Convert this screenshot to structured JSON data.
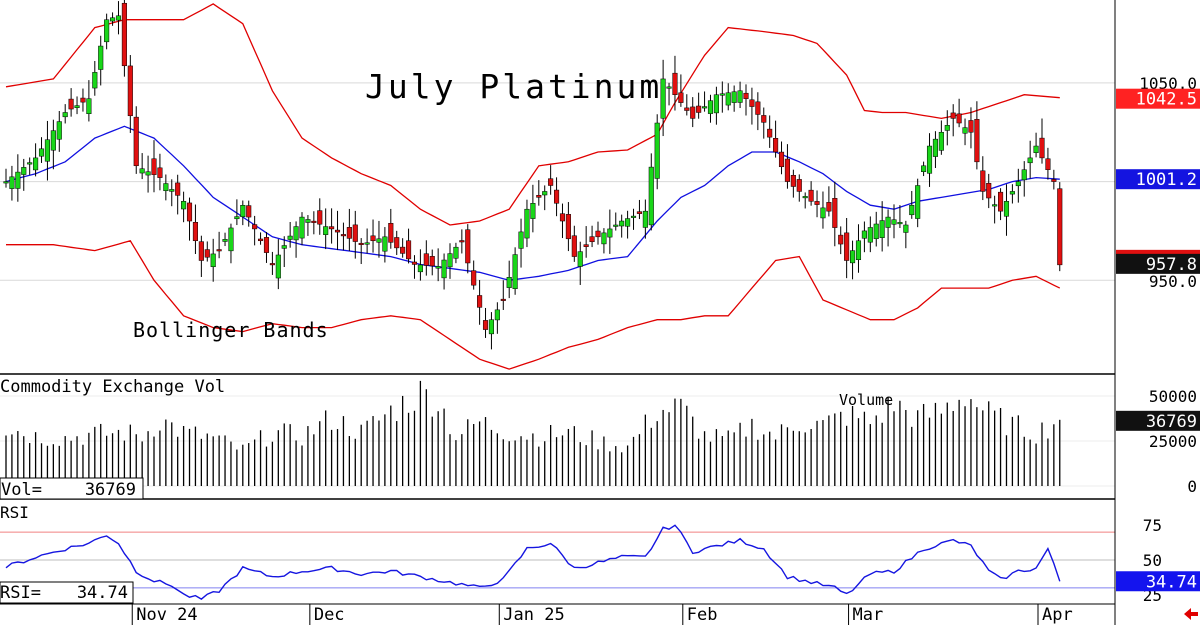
{
  "chart_data": {
    "type": "candlestick",
    "title": "July Platinum",
    "indicator_label": "Bollinger Bands",
    "x_labels": [
      "Nov 24",
      "Dec",
      "Jan 25",
      "Feb",
      "Mar",
      "Apr"
    ],
    "x_label_index": [
      22,
      52,
      84,
      115,
      143,
      175
    ],
    "n_bars": 179,
    "price_panel": {
      "y_ticks": [
        950.0,
        1000.0,
        1050.0
      ],
      "y_tick_labels": [
        "950.0",
        "1050.0"
      ],
      "ylim": [
        903,
        1092
      ],
      "last_price": 957.8,
      "last_price_label": "957.8",
      "upper_band_last": 1042.5,
      "upper_band_label": "1042.5",
      "mid_band_last": 1001.2,
      "mid_band_label": "1001.2",
      "close_anchors": [
        [
          0,
          1000
        ],
        [
          5,
          1012
        ],
        [
          10,
          1035
        ],
        [
          14,
          1042
        ],
        [
          17,
          1082
        ],
        [
          19,
          1084
        ],
        [
          22,
          1008
        ],
        [
          26,
          1002
        ],
        [
          30,
          990
        ],
        [
          33,
          960
        ],
        [
          36,
          965
        ],
        [
          40,
          988
        ],
        [
          45,
          958
        ],
        [
          50,
          982
        ],
        [
          55,
          976
        ],
        [
          60,
          968
        ],
        [
          64,
          972
        ],
        [
          69,
          958
        ],
        [
          73,
          957
        ],
        [
          77,
          970
        ],
        [
          81,
          925
        ],
        [
          84,
          940
        ],
        [
          88,
          986
        ],
        [
          92,
          998
        ],
        [
          96,
          962
        ],
        [
          100,
          972
        ],
        [
          104,
          980
        ],
        [
          108,
          985
        ],
        [
          111,
          1052
        ],
        [
          116,
          1032
        ],
        [
          120,
          1044
        ],
        [
          124,
          1046
        ],
        [
          128,
          1030
        ],
        [
          132,
          1000
        ],
        [
          136,
          990
        ],
        [
          139,
          985
        ],
        [
          142,
          960
        ],
        [
          145,
          975
        ],
        [
          149,
          982
        ],
        [
          152,
          978
        ],
        [
          156,
          1018
        ],
        [
          160,
          1032
        ],
        [
          163,
          1025
        ],
        [
          165,
          995
        ],
        [
          168,
          985
        ],
        [
          171,
          1000
        ],
        [
          174,
          1018
        ],
        [
          177,
          1000
        ],
        [
          178,
          957.8
        ]
      ],
      "upper_band_anchors": [
        [
          0,
          1048
        ],
        [
          8,
          1052
        ],
        [
          15,
          1078
        ],
        [
          20,
          1082
        ],
        [
          30,
          1082
        ],
        [
          35,
          1090
        ],
        [
          40,
          1080
        ],
        [
          45,
          1046
        ],
        [
          50,
          1022
        ],
        [
          55,
          1012
        ],
        [
          60,
          1004
        ],
        [
          65,
          998
        ],
        [
          70,
          986
        ],
        [
          75,
          978
        ],
        [
          80,
          980
        ],
        [
          85,
          986
        ],
        [
          90,
          1008
        ],
        [
          95,
          1010
        ],
        [
          100,
          1015
        ],
        [
          105,
          1016
        ],
        [
          110,
          1024
        ],
        [
          113,
          1040
        ],
        [
          118,
          1064
        ],
        [
          122,
          1078
        ],
        [
          128,
          1076
        ],
        [
          133,
          1074
        ],
        [
          137,
          1070
        ],
        [
          142,
          1054
        ],
        [
          145,
          1036
        ],
        [
          148,
          1035
        ],
        [
          152,
          1035
        ],
        [
          158,
          1032
        ],
        [
          163,
          1035
        ],
        [
          168,
          1040
        ],
        [
          172,
          1044
        ],
        [
          178,
          1042.5
        ]
      ],
      "mid_band_anchors": [
        [
          0,
          1000
        ],
        [
          5,
          1004
        ],
        [
          10,
          1010
        ],
        [
          15,
          1022
        ],
        [
          20,
          1028
        ],
        [
          25,
          1022
        ],
        [
          30,
          1008
        ],
        [
          35,
          992
        ],
        [
          40,
          982
        ],
        [
          45,
          972
        ],
        [
          50,
          968
        ],
        [
          55,
          966
        ],
        [
          60,
          964
        ],
        [
          65,
          962
        ],
        [
          70,
          958
        ],
        [
          75,
          956
        ],
        [
          80,
          954
        ],
        [
          85,
          950
        ],
        [
          90,
          952
        ],
        [
          95,
          955
        ],
        [
          100,
          960
        ],
        [
          105,
          962
        ],
        [
          110,
          980
        ],
        [
          114,
          992
        ],
        [
          118,
          998
        ],
        [
          122,
          1008
        ],
        [
          126,
          1015
        ],
        [
          130,
          1015
        ],
        [
          134,
          1010
        ],
        [
          138,
          1004
        ],
        [
          142,
          995
        ],
        [
          146,
          988
        ],
        [
          150,
          986
        ],
        [
          154,
          990
        ],
        [
          158,
          992
        ],
        [
          162,
          994
        ],
        [
          166,
          996
        ],
        [
          170,
          1000
        ],
        [
          174,
          1002
        ],
        [
          178,
          1001.2
        ]
      ],
      "lower_band_anchors": [
        [
          0,
          968
        ],
        [
          8,
          968
        ],
        [
          15,
          965
        ],
        [
          21,
          970
        ],
        [
          25,
          950
        ],
        [
          30,
          932
        ],
        [
          35,
          926
        ],
        [
          40,
          924
        ],
        [
          45,
          928
        ],
        [
          50,
          926
        ],
        [
          55,
          926
        ],
        [
          60,
          930
        ],
        [
          65,
          932
        ],
        [
          70,
          930
        ],
        [
          75,
          920
        ],
        [
          80,
          910
        ],
        [
          85,
          905
        ],
        [
          90,
          910
        ],
        [
          95,
          916
        ],
        [
          100,
          920
        ],
        [
          105,
          926
        ],
        [
          110,
          930
        ],
        [
          114,
          930
        ],
        [
          118,
          932
        ],
        [
          122,
          932
        ],
        [
          126,
          946
        ],
        [
          130,
          960
        ],
        [
          134,
          962
        ],
        [
          138,
          940
        ],
        [
          142,
          935
        ],
        [
          146,
          930
        ],
        [
          150,
          930
        ],
        [
          154,
          936
        ],
        [
          158,
          946
        ],
        [
          162,
          946
        ],
        [
          166,
          946
        ],
        [
          170,
          950
        ],
        [
          174,
          952
        ],
        [
          178,
          946
        ]
      ]
    },
    "volume_panel": {
      "label": "Commodity Exchange Vol",
      "legend": "Volume",
      "y_ticks": [
        0,
        25000,
        50000
      ],
      "y_tick_labels": [
        "0",
        "25000",
        "50000"
      ],
      "ylim": [
        0,
        60000
      ],
      "last_value": 36769,
      "last_value_label": "36769",
      "readout_label": "Vol=",
      "readout_value": "36769",
      "anchors": [
        [
          0,
          33000
        ],
        [
          5,
          28000
        ],
        [
          10,
          27000
        ],
        [
          15,
          29000
        ],
        [
          20,
          30000
        ],
        [
          23,
          28000
        ],
        [
          26,
          37000
        ],
        [
          30,
          30000
        ],
        [
          35,
          27000
        ],
        [
          40,
          20000
        ],
        [
          45,
          30000
        ],
        [
          50,
          28000
        ],
        [
          55,
          38000
        ],
        [
          60,
          30000
        ],
        [
          65,
          42000
        ],
        [
          70,
          52000
        ],
        [
          73,
          48000
        ],
        [
          76,
          28000
        ],
        [
          80,
          36000
        ],
        [
          85,
          30000
        ],
        [
          90,
          28000
        ],
        [
          95,
          30000
        ],
        [
          100,
          25000
        ],
        [
          105,
          22000
        ],
        [
          110,
          42000
        ],
        [
          114,
          44000
        ],
        [
          118,
          28000
        ],
        [
          122,
          26000
        ],
        [
          126,
          34000
        ],
        [
          130,
          28000
        ],
        [
          134,
          36000
        ],
        [
          138,
          34000
        ],
        [
          142,
          40000
        ],
        [
          146,
          36000
        ],
        [
          150,
          46000
        ],
        [
          154,
          38000
        ],
        [
          158,
          42000
        ],
        [
          162,
          52000
        ],
        [
          166,
          40000
        ],
        [
          170,
          34000
        ],
        [
          174,
          30000
        ],
        [
          178,
          36769
        ]
      ]
    },
    "rsi_panel": {
      "label": "RSI",
      "y_ticks": [
        25,
        50,
        75
      ],
      "y_tick_labels": [
        "25",
        "50",
        "75"
      ],
      "ylim": [
        17,
        93
      ],
      "overbought": 70,
      "oversold": 30,
      "last_value": 34.74,
      "last_value_label": "34.74",
      "readout_label": "RSI=",
      "readout_value": "34.74",
      "anchors": [
        [
          0,
          45
        ],
        [
          5,
          52
        ],
        [
          10,
          58
        ],
        [
          14,
          62
        ],
        [
          17,
          68
        ],
        [
          19,
          62
        ],
        [
          22,
          42
        ],
        [
          25,
          35
        ],
        [
          28,
          32
        ],
        [
          30,
          25
        ],
        [
          33,
          22
        ],
        [
          36,
          28
        ],
        [
          40,
          44
        ],
        [
          45,
          38
        ],
        [
          50,
          42
        ],
        [
          55,
          44
        ],
        [
          60,
          40
        ],
        [
          65,
          42
        ],
        [
          70,
          38
        ],
        [
          75,
          34
        ],
        [
          80,
          30
        ],
        [
          84,
          36
        ],
        [
          88,
          58
        ],
        [
          92,
          62
        ],
        [
          96,
          44
        ],
        [
          100,
          48
        ],
        [
          104,
          52
        ],
        [
          108,
          52
        ],
        [
          111,
          72
        ],
        [
          113,
          75
        ],
        [
          116,
          56
        ],
        [
          120,
          60
        ],
        [
          124,
          64
        ],
        [
          128,
          58
        ],
        [
          132,
          38
        ],
        [
          136,
          34
        ],
        [
          140,
          30
        ],
        [
          142,
          25
        ],
        [
          146,
          40
        ],
        [
          150,
          42
        ],
        [
          155,
          58
        ],
        [
          160,
          64
        ],
        [
          163,
          60
        ],
        [
          166,
          42
        ],
        [
          168,
          36
        ],
        [
          171,
          42
        ],
        [
          174,
          44
        ],
        [
          176,
          58
        ],
        [
          178,
          34.74
        ]
      ]
    },
    "colors": {
      "up_candle": "#19d619",
      "down_candle": "#e01010",
      "bollinger": "#e00000",
      "mid_band": "#1010e0",
      "rsi_line": "#1515e0",
      "last_price_badge": "#111111",
      "upper_badge": "#ff2222",
      "mid_badge": "#1414e0",
      "rsi_badge": "#1414ee",
      "volume_badge": "#111111",
      "arrow": "#e00000"
    }
  }
}
